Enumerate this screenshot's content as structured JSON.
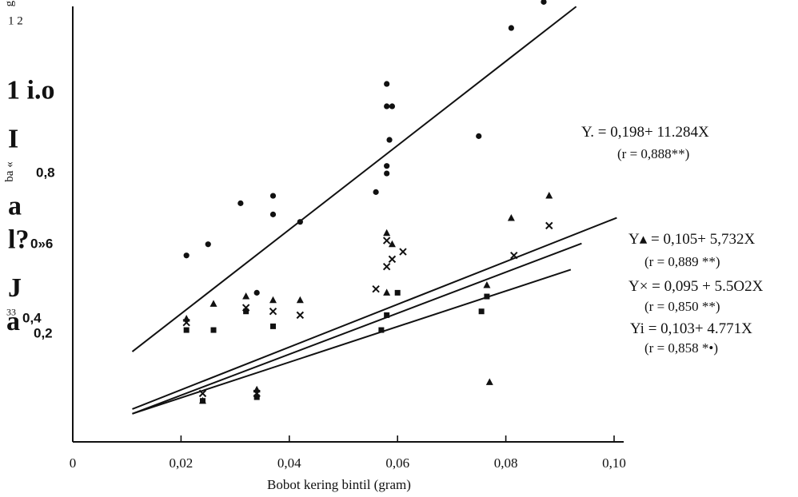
{
  "chart_data": {
    "type": "scatter",
    "xlabel": "Bobot kering bintil (gram)",
    "xlim": [
      0,
      0.1
    ],
    "ylim": [
      0.08,
      1.35
    ],
    "x_ticks": [
      {
        "value": 0,
        "label": "0"
      },
      {
        "value": 0.02,
        "label": "0,02"
      },
      {
        "value": 0.04,
        "label": "0,04"
      },
      {
        "value": 0.06,
        "label": "0,06"
      },
      {
        "value": 0.08,
        "label": "0,08"
      },
      {
        "value": 0.1,
        "label": "0,10"
      }
    ],
    "y_axis_fragments": [
      {
        "text": "g m)",
        "y": 1.26,
        "style": "small",
        "rotate": true
      },
      {
        "text": "1 2",
        "y": 1.2,
        "style": "small"
      },
      {
        "text": "1 i.o",
        "y": 1.0,
        "style": "big"
      },
      {
        "text": "I",
        "y": 0.87,
        "style": "big"
      },
      {
        "text": "ba «",
        "y": 0.79,
        "style": "small",
        "rotate": true
      },
      {
        "text": "0,8",
        "y": 0.79,
        "style": "bold"
      },
      {
        "text": "a",
        "y": 0.69,
        "style": "big"
      },
      {
        "text": "0»6",
        "y": 0.6,
        "style": "bold"
      },
      {
        "text": "l?",
        "y": 0.6,
        "style": "big"
      },
      {
        "text": "J",
        "y": 0.47,
        "style": "big"
      },
      {
        "text": "33",
        "y": 0.42,
        "style": "tiny"
      },
      {
        "text": "a",
        "y": 0.38,
        "style": "big"
      },
      {
        "text": "0,4",
        "y": 0.4,
        "style": "bold"
      },
      {
        "text": "0,2",
        "y": 0.36,
        "style": "bold"
      }
    ],
    "series": [
      {
        "marker": "circle",
        "equation": "Y. = 0,198+ 11.284X",
        "r_label": "(r = 0,888**)",
        "intercept": 0.198,
        "slope": 11.284,
        "line_x": [
          0.011,
          0.093
        ],
        "points": [
          [
            0.021,
            0.58
          ],
          [
            0.025,
            0.61
          ],
          [
            0.031,
            0.72
          ],
          [
            0.037,
            0.74
          ],
          [
            0.037,
            0.69
          ],
          [
            0.042,
            0.67
          ],
          [
            0.034,
            0.48
          ],
          [
            0.056,
            0.75
          ],
          [
            0.058,
            1.04
          ],
          [
            0.058,
            0.98
          ],
          [
            0.0585,
            0.89
          ],
          [
            0.059,
            0.98
          ],
          [
            0.058,
            0.82
          ],
          [
            0.058,
            0.8
          ],
          [
            0.075,
            0.9
          ],
          [
            0.081,
            1.19
          ],
          [
            0.087,
            1.26
          ]
        ]
      },
      {
        "marker": "triangle",
        "equation": "Y▴ = 0,105+ 5,732X",
        "r_label": "(r = 0,889 **)",
        "intercept": 0.105,
        "slope": 5.732,
        "line_x": [
          0.011,
          0.1005
        ],
        "points": [
          [
            0.021,
            0.41
          ],
          [
            0.024,
            0.19
          ],
          [
            0.026,
            0.45
          ],
          [
            0.032,
            0.47
          ],
          [
            0.034,
            0.22
          ],
          [
            0.037,
            0.46
          ],
          [
            0.042,
            0.46
          ],
          [
            0.058,
            0.64
          ],
          [
            0.058,
            0.48
          ],
          [
            0.059,
            0.61
          ],
          [
            0.0765,
            0.5
          ],
          [
            0.077,
            0.24
          ],
          [
            0.081,
            0.68
          ],
          [
            0.088,
            0.74
          ]
        ]
      },
      {
        "marker": "cross",
        "equation": "Y× = 0,095 + 5.5O2X",
        "r_label": "(r = 0,850 **)",
        "intercept": 0.095,
        "slope": 5.502,
        "line_x": [
          0.011,
          0.094
        ],
        "points": [
          [
            0.021,
            0.4
          ],
          [
            0.024,
            0.21
          ],
          [
            0.032,
            0.44
          ],
          [
            0.034,
            0.21
          ],
          [
            0.037,
            0.43
          ],
          [
            0.042,
            0.42
          ],
          [
            0.056,
            0.49
          ],
          [
            0.058,
            0.55
          ],
          [
            0.058,
            0.62
          ],
          [
            0.059,
            0.57
          ],
          [
            0.061,
            0.59
          ],
          [
            0.0815,
            0.58
          ],
          [
            0.088,
            0.66
          ]
        ]
      },
      {
        "marker": "square",
        "equation": "Yi = 0,103+ 4.771X",
        "r_label": "(r = 0,858 *•)",
        "intercept": 0.103,
        "slope": 4.771,
        "line_x": [
          0.011,
          0.092
        ],
        "points": [
          [
            0.021,
            0.38
          ],
          [
            0.024,
            0.19
          ],
          [
            0.026,
            0.38
          ],
          [
            0.032,
            0.43
          ],
          [
            0.034,
            0.2
          ],
          [
            0.037,
            0.39
          ],
          [
            0.057,
            0.38
          ],
          [
            0.058,
            0.42
          ],
          [
            0.06,
            0.48
          ],
          [
            0.0755,
            0.43
          ],
          [
            0.0765,
            0.47
          ]
        ]
      }
    ]
  },
  "colors": {
    "ink": "#111111",
    "background": "#ffffff"
  }
}
